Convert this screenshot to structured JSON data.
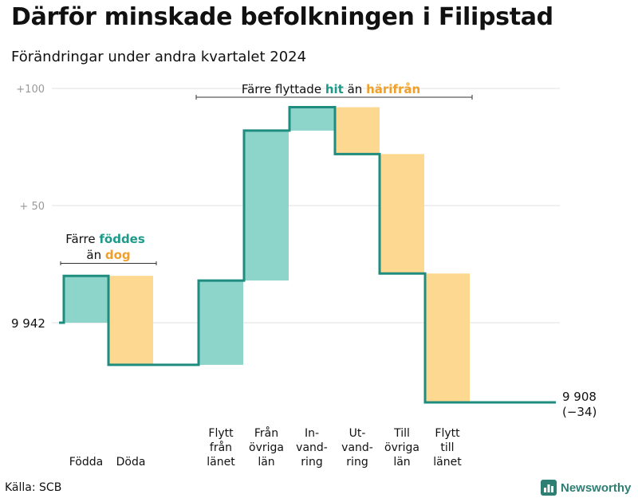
{
  "title": "Därför minskade befolkningen i Filipstad",
  "subtitle": "Förändringar under andra kvartalet 2024",
  "source": "Källa: SCB",
  "brand": "Newsworthy",
  "brand_icon": "newsworthy-bar-chart-logo",
  "colors": {
    "increase": "#8dd5cb",
    "decrease": "#fcd891",
    "line": "#1e8c7e",
    "accent_teal": "#1e9a8a",
    "accent_orange": "#f0a02a",
    "grid": "#e0e0e0",
    "tick": "#999999"
  },
  "annotations": {
    "births": {
      "line1": "Färre",
      "teal": "föddes",
      "prefix2": "än",
      "orange": "dog"
    },
    "migration": {
      "prefix": "Färre flyttade",
      "teal": "hit",
      "mid": "än",
      "orange": "härifrån"
    }
  },
  "chart_data": {
    "type": "waterfall",
    "title": "Därför minskade befolkningen i Filipstad",
    "subtitle": "Förändringar under andra kvartalet 2024",
    "start_label": "9 942",
    "start_value": 9942,
    "end_label": "9 908",
    "end_change_label": "(−34)",
    "end_value": 9908,
    "yticks": [
      {
        "value": 100,
        "label": "+100"
      },
      {
        "value": 50,
        "label": "+  50"
      }
    ],
    "ylim": [
      -35,
      105
    ],
    "categories": [
      {
        "lines": [
          "Födda"
        ],
        "delta": 20,
        "kind": "increase"
      },
      {
        "lines": [
          "Döda"
        ],
        "delta": -38,
        "kind": "decrease"
      },
      {
        "lines": [
          "Flytt",
          "från",
          "länet"
        ],
        "delta": 36,
        "kind": "increase"
      },
      {
        "lines": [
          "Från",
          "övriga",
          "län"
        ],
        "delta": 64,
        "kind": "increase"
      },
      {
        "lines": [
          "In-",
          "vand-",
          "ring"
        ],
        "delta": 10,
        "kind": "increase"
      },
      {
        "lines": [
          "Ut-",
          "vand-",
          "ring"
        ],
        "delta": -20,
        "kind": "decrease"
      },
      {
        "lines": [
          "Till",
          "övriga",
          "län"
        ],
        "delta": -51,
        "kind": "decrease"
      },
      {
        "lines": [
          "Flytt",
          "till",
          "länet"
        ],
        "delta": -55,
        "kind": "decrease"
      }
    ]
  }
}
